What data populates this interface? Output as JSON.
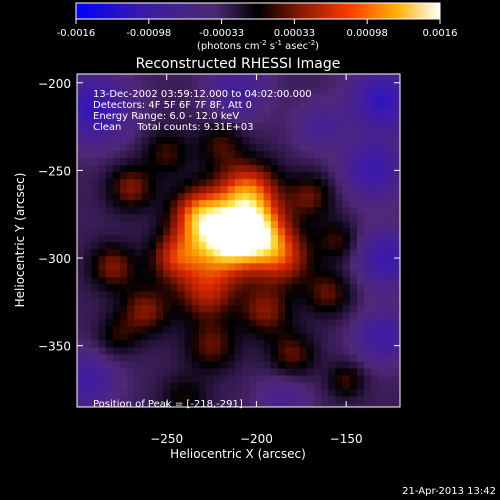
{
  "chart_data": {
    "type": "heatmap",
    "title": "Reconstructed RHESSI Image",
    "xlabel": "Heliocentric X (arcsec)",
    "ylabel": "Heliocentric Y (arcsec)",
    "xlim": [
      -300,
      -120
    ],
    "ylim": [
      -385,
      -195
    ],
    "x_ticks": [
      -250,
      -200,
      -150
    ],
    "y_ticks": [
      -200,
      -250,
      -300,
      -350
    ],
    "colorbar": {
      "min": -0.0016,
      "max": 0.0016,
      "ticks": [
        "-0.0016",
        "-0.00098",
        "-0.00033",
        "0.00033",
        "0.00098",
        "0.0016"
      ],
      "units_prefix": "(photons cm",
      "units_exp1": "-2",
      "units_mid1": " s",
      "units_exp2": "-1",
      "units_mid2": " asec",
      "units_exp3": "-2",
      "units_suffix": ")"
    },
    "info_lines": [
      "13-Dec-2002 03:59:12.000 to 04:02:00.000",
      "Detectors: 4F 5F 6F 7F 8F, Att 0",
      "Energy Range: 6.0 - 12.0 keV",
      "Clean     Total counts: 9.31E+03"
    ],
    "peak_label": "Position of Peak = [-218,-291]",
    "peak": [
      -218,
      -291
    ],
    "blobs": [
      {
        "x": -218,
        "y": -291,
        "v": 0.00165,
        "s": 14
      },
      {
        "x": -200,
        "y": -285,
        "v": 0.0014,
        "s": 12
      },
      {
        "x": -232,
        "y": -275,
        "v": 0.0011,
        "s": 11
      },
      {
        "x": -205,
        "y": -262,
        "v": 0.0012,
        "s": 12
      },
      {
        "x": -185,
        "y": -300,
        "v": 0.0009,
        "s": 11
      },
      {
        "x": -245,
        "y": -300,
        "v": 0.0009,
        "s": 10
      },
      {
        "x": -228,
        "y": -320,
        "v": 0.0008,
        "s": 11
      },
      {
        "x": -195,
        "y": -330,
        "v": 0.0007,
        "s": 10
      },
      {
        "x": -262,
        "y": -330,
        "v": 0.0007,
        "s": 10
      },
      {
        "x": -270,
        "y": -260,
        "v": 0.0007,
        "s": 9
      },
      {
        "x": -280,
        "y": -305,
        "v": 0.0007,
        "s": 9
      },
      {
        "x": -170,
        "y": -265,
        "v": 0.0006,
        "s": 9
      },
      {
        "x": -160,
        "y": -320,
        "v": 0.0006,
        "s": 9
      },
      {
        "x": -225,
        "y": -350,
        "v": 0.0006,
        "s": 10
      },
      {
        "x": -180,
        "y": -355,
        "v": 0.0006,
        "s": 9
      },
      {
        "x": -250,
        "y": -240,
        "v": 0.0005,
        "s": 9
      },
      {
        "x": -220,
        "y": -235,
        "v": 0.0005,
        "s": 9
      },
      {
        "x": -155,
        "y": -290,
        "v": 0.0005,
        "s": 8
      },
      {
        "x": -278,
        "y": -345,
        "v": 0.0004,
        "s": 8
      },
      {
        "x": -150,
        "y": -370,
        "v": 0.0005,
        "s": 7
      },
      {
        "x": -240,
        "y": -380,
        "v": 0.0004,
        "s": 9
      },
      {
        "x": -290,
        "y": -215,
        "v": -0.0008,
        "s": 14
      },
      {
        "x": -130,
        "y": -210,
        "v": -0.0008,
        "s": 13
      },
      {
        "x": -135,
        "y": -250,
        "v": -0.0007,
        "s": 12
      },
      {
        "x": -128,
        "y": -300,
        "v": -0.0007,
        "s": 12
      },
      {
        "x": -130,
        "y": -345,
        "v": -0.0006,
        "s": 11
      },
      {
        "x": -295,
        "y": -370,
        "v": -0.0006,
        "s": 12
      },
      {
        "x": -210,
        "y": -205,
        "v": -0.0005,
        "s": 12
      },
      {
        "x": -165,
        "y": -225,
        "v": -0.0004,
        "s": 10
      },
      {
        "x": -185,
        "y": -380,
        "v": -0.0004,
        "s": 10
      }
    ]
  },
  "footer_timestamp": "21-Apr-2013 13:42"
}
